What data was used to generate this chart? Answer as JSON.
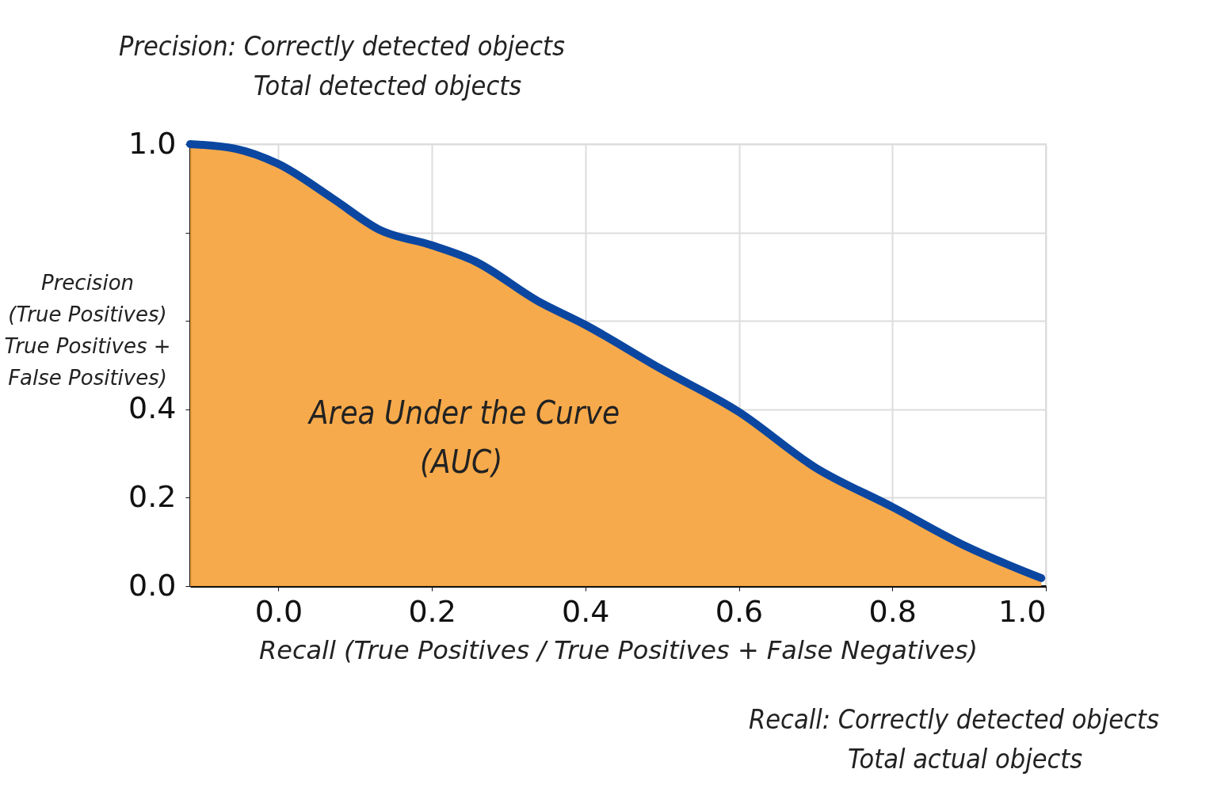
{
  "chart_data": {
    "type": "area",
    "xlabel": "Recall (True Positives / True Positives + False Negatives)",
    "ylabel": "Precision\n(True Positives)\nTrue Positives +\nFalse Positives)",
    "x": [
      -0.115,
      -0.057,
      0,
      0.07,
      0.132,
      0.2,
      0.256,
      0.338,
      0.4,
      0.497,
      0.6,
      0.699,
      0.8,
      0.896,
      0.994
    ],
    "series": [
      {
        "type": "area",
        "color": "#f7a541",
        "values": [
          1.0,
          0.99,
          0.955,
          0.878,
          0.806,
          0.771,
          0.735,
          0.645,
          0.591,
          0.493,
          0.394,
          0.269,
          0.179,
          0.09,
          0.018
        ]
      },
      {
        "type": "line",
        "color": "#0b47a1",
        "values": [
          1.0,
          0.99,
          0.955,
          0.878,
          0.806,
          0.771,
          0.735,
          0.645,
          0.591,
          0.493,
          0.394,
          0.269,
          0.179,
          0.09,
          0.018
        ]
      }
    ],
    "xlim": [
      -0.115,
      1.0
    ],
    "xticks": [
      {
        "value": 0,
        "label": "0.0"
      },
      0.2,
      0.4,
      0.6,
      0.8,
      {
        "value": 1,
        "label": "1.0"
      }
    ],
    "ylim": [
      0,
      1.0
    ],
    "yticks": [
      {
        "value": 0,
        "label": "0.0"
      },
      0.2,
      0.4,
      {
        "value": 0.6,
        "label": null
      },
      {
        "value": 0.8,
        "label": null
      },
      {
        "value": 1,
        "label": "1.0"
      }
    ],
    "grid": true,
    "legend": false,
    "annotations": [
      "Precision: Correctly detected objects",
      "Total detected objects",
      "Area Under the Curve",
      "(AUC)",
      "Recall: Correctly detected objects",
      "Total actual objects"
    ]
  }
}
